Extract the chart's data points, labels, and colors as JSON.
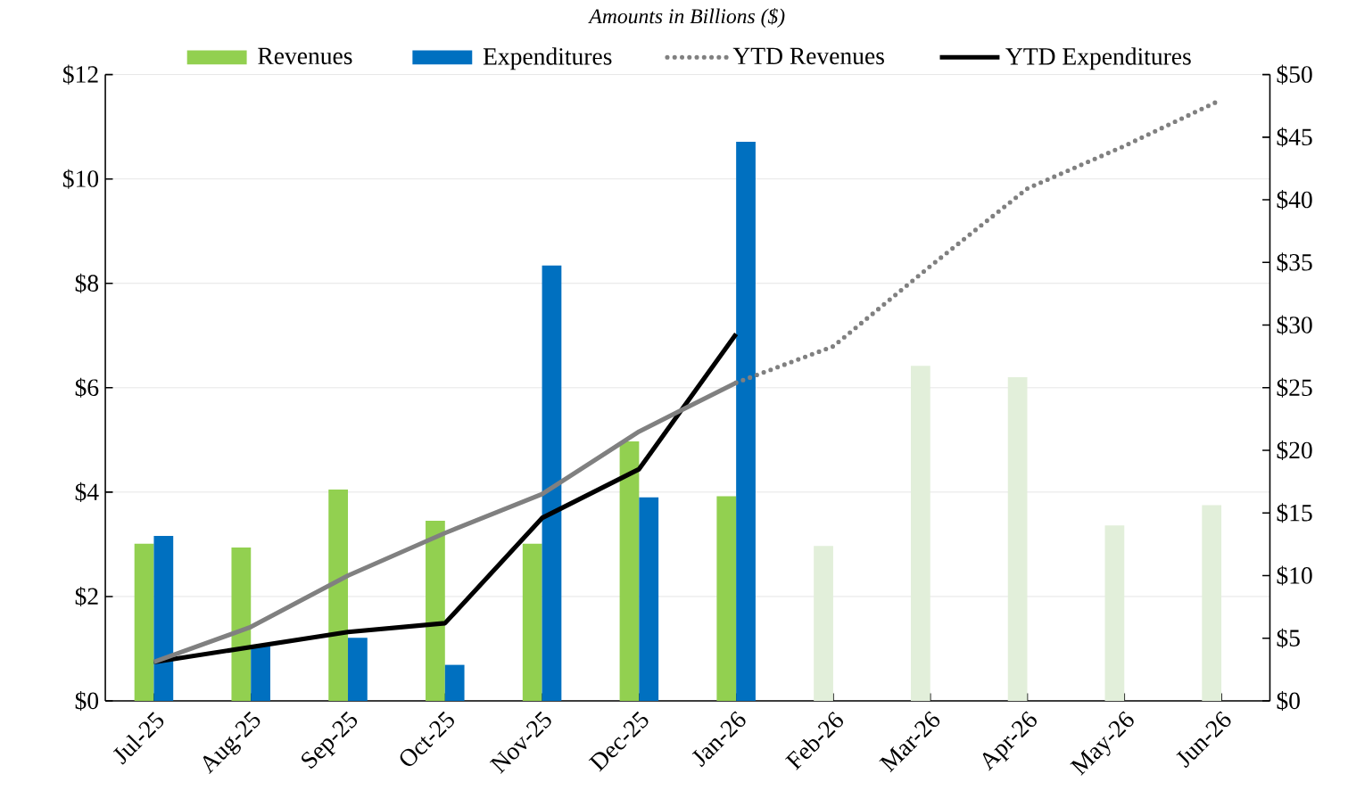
{
  "chart_data": {
    "type": "bar",
    "title": "Amounts in Billions ($)",
    "categories": [
      "Jul-25",
      "Aug-25",
      "Sep-25",
      "Oct-25",
      "Nov-25",
      "Dec-25",
      "Jan-26",
      "Feb-26",
      "Mar-26",
      "Apr-26",
      "May-26",
      "Jun-26"
    ],
    "series": [
      {
        "name": "Revenues",
        "color": "#92d050",
        "colors": [
          "#92d050",
          "#92d050",
          "#92d050",
          "#92d050",
          "#92d050",
          "#92d050",
          "#92d050",
          "#e2efda",
          "#e2efda",
          "#e2efda",
          "#e2efda",
          "#e2efda"
        ],
        "values": [
          3.01,
          2.94,
          4.05,
          3.45,
          3.01,
          4.97,
          3.92,
          2.97,
          6.42,
          6.2,
          3.36,
          3.75
        ]
      },
      {
        "name": "Expenditures",
        "color": "#0070c0",
        "values": [
          3.16,
          1.05,
          1.21,
          0.69,
          8.34,
          3.9,
          10.71,
          null,
          null,
          null,
          null,
          null
        ]
      },
      {
        "name": "YTD Revenues",
        "type": "line",
        "axis": "y2",
        "color": "#808080",
        "line_style": "dotted",
        "values": [
          null,
          null,
          null,
          null,
          null,
          null,
          25.4,
          28.3,
          34.7,
          40.9,
          44.3,
          48.0
        ]
      },
      {
        "name": "YTD Expenditures",
        "type": "line",
        "axis": "y2",
        "color": "#000000",
        "line_style": "solid",
        "values": [
          3.1,
          4.3,
          5.5,
          6.2,
          14.6,
          18.5,
          29.3,
          null,
          null,
          null,
          null,
          null
        ]
      },
      {
        "type": "line",
        "axis": "y2",
        "color": "#808080",
        "line_style": "solid",
        "values": [
          3.1,
          5.9,
          10.0,
          13.4,
          16.5,
          21.5,
          25.4,
          null,
          null,
          null,
          null,
          null
        ]
      }
    ],
    "ylim": [
      0,
      12
    ],
    "yticks": [
      {
        "value": 0,
        "label": "$0"
      },
      {
        "value": 2,
        "label": "$2"
      },
      {
        "value": 4,
        "label": "$4"
      },
      {
        "value": 6,
        "label": "$6"
      },
      {
        "value": 8,
        "label": "$8"
      },
      {
        "value": 10,
        "label": "$10"
      },
      {
        "value": 12,
        "label": "$12"
      }
    ],
    "y2lim": [
      0,
      50
    ],
    "y2ticks": [
      {
        "value": 0,
        "label": "$0"
      },
      {
        "value": 5,
        "label": "$5"
      },
      {
        "value": 10,
        "label": "$10"
      },
      {
        "value": 15,
        "label": "$15"
      },
      {
        "value": 20,
        "label": "$20"
      },
      {
        "value": 25,
        "label": "$25"
      },
      {
        "value": 30,
        "label": "$30"
      },
      {
        "value": 35,
        "label": "$35"
      },
      {
        "value": 40,
        "label": "$40"
      },
      {
        "value": 45,
        "label": "$45"
      },
      {
        "value": 50,
        "label": "$50"
      }
    ],
    "grid": "y",
    "legend": "top"
  }
}
